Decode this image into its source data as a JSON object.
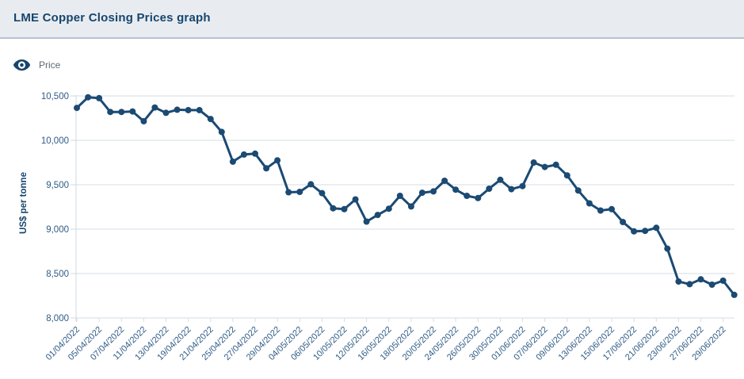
{
  "header": {
    "title": "LME Copper Closing Prices graph"
  },
  "legend": {
    "icon": "eye-icon",
    "label": "Price"
  },
  "colors": {
    "header_bg": "#e8ecf0",
    "header_border": "#b5c2cd",
    "title_text": "#17456e",
    "legend_text": "#5e6a75",
    "axis_text": "#2f5b85",
    "grid_line": "#d6dee5",
    "axis_line": "#cfd9e0",
    "series_line": "#1b4a73"
  },
  "chart_data": {
    "type": "line",
    "title": "LME Copper Closing Prices graph",
    "xlabel": "",
    "ylabel": "US$ per tonne",
    "legend_position": "top-left",
    "grid": "horizontal",
    "ylim": [
      8000,
      10500
    ],
    "yticks": [
      8000,
      8500,
      9000,
      9500,
      10000,
      10500
    ],
    "ytick_labels": [
      "8,000",
      "8,500",
      "9,000",
      "9,500",
      "10,000",
      "10,500"
    ],
    "x_tick_labels": [
      "01/04/2022",
      "05/04/2022",
      "07/04/2022",
      "11/04/2022",
      "13/04/2022",
      "19/04/2022",
      "21/04/2022",
      "25/04/2022",
      "27/04/2022",
      "29/04/2022",
      "04/05/2022",
      "06/05/2022",
      "10/05/2022",
      "12/05/2022",
      "16/05/2022",
      "18/05/2022",
      "20/05/2022",
      "24/05/2022",
      "26/05/2022",
      "30/05/2022",
      "01/06/2022",
      "07/06/2022",
      "09/06/2022",
      "13/06/2022",
      "15/06/2022",
      "17/06/2022",
      "21/06/2022",
      "23/06/2022",
      "27/06/2022",
      "29/06/2022"
    ],
    "series": [
      {
        "name": "Price",
        "color": "#1b4a73",
        "marker": "circle",
        "x": [
          "01/04/2022",
          "04/04/2022",
          "05/04/2022",
          "06/04/2022",
          "07/04/2022",
          "08/04/2022",
          "11/04/2022",
          "12/04/2022",
          "13/04/2022",
          "14/04/2022",
          "19/04/2022",
          "20/04/2022",
          "21/04/2022",
          "22/04/2022",
          "25/04/2022",
          "26/04/2022",
          "27/04/2022",
          "28/04/2022",
          "29/04/2022",
          "03/05/2022",
          "04/05/2022",
          "05/05/2022",
          "06/05/2022",
          "09/05/2022",
          "10/05/2022",
          "11/05/2022",
          "12/05/2022",
          "13/05/2022",
          "16/05/2022",
          "17/05/2022",
          "18/05/2022",
          "19/05/2022",
          "20/05/2022",
          "23/05/2022",
          "24/05/2022",
          "25/05/2022",
          "26/05/2022",
          "27/05/2022",
          "30/05/2022",
          "31/05/2022",
          "01/06/2022",
          "06/06/2022",
          "07/06/2022",
          "08/06/2022",
          "09/06/2022",
          "10/06/2022",
          "13/06/2022",
          "14/06/2022",
          "15/06/2022",
          "16/06/2022",
          "17/06/2022",
          "20/06/2022",
          "21/06/2022",
          "22/06/2022",
          "23/06/2022",
          "24/06/2022",
          "27/06/2022",
          "28/06/2022",
          "29/06/2022",
          "30/06/2022"
        ],
        "values": [
          10365,
          10485,
          10475,
          10320,
          10320,
          10325,
          10215,
          10370,
          10310,
          10345,
          10340,
          10340,
          10240,
          10095,
          9760,
          9840,
          9850,
          9685,
          9775,
          9415,
          9420,
          9505,
          9405,
          9235,
          9225,
          9335,
          9085,
          9160,
          9230,
          9375,
          9255,
          9410,
          9425,
          9545,
          9445,
          9375,
          9350,
          9455,
          9555,
          9450,
          9485,
          9750,
          9700,
          9725,
          9605,
          9435,
          9290,
          9210,
          9225,
          9080,
          8975,
          8980,
          9015,
          8780,
          8410,
          8380,
          8435,
          8375,
          8420,
          8260
        ]
      }
    ]
  }
}
